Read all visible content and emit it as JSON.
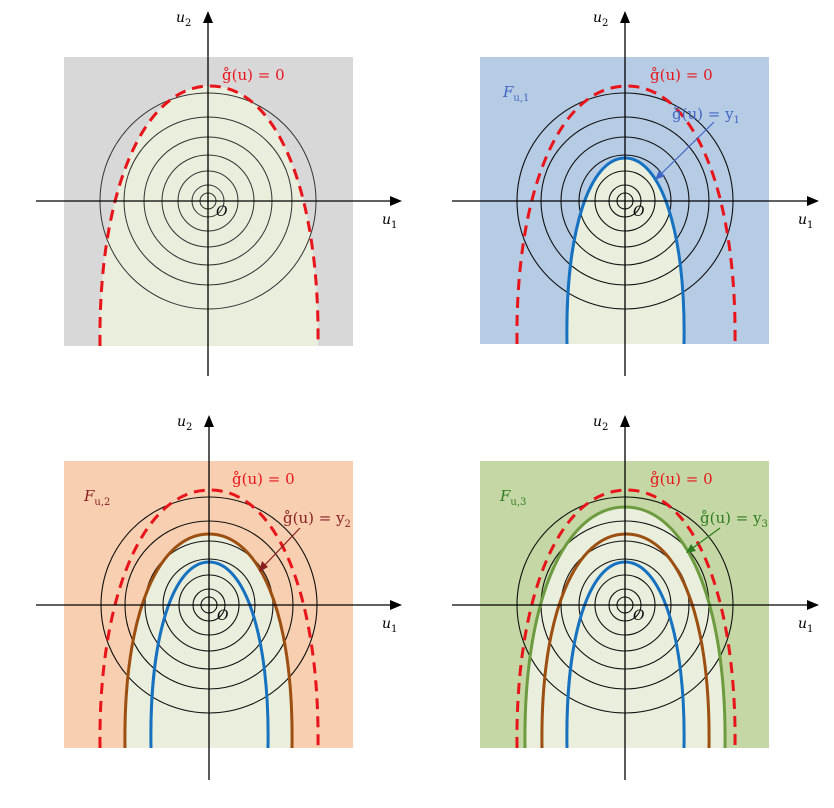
{
  "colors": {
    "boundary": "#e8141a",
    "blue": "#1672c0",
    "brown": "#9c4f10",
    "green": "#6d9b3f",
    "feasible": "#eaeedc",
    "bg_gray": "#d8d8d8",
    "bg_blue": "#b6cbe4",
    "bg_orange": "#f8cfb0",
    "bg_green": "#c4d7a4",
    "label_blue": "#3f67c6",
    "label_brown": "#8a1e1e",
    "label_green": "#2e7d1e"
  },
  "axis_labels": {
    "x": "u",
    "x_sub": "1",
    "y": "u",
    "y_sub": "2",
    "origin": "O"
  },
  "labels": {
    "boundary": "g̊(u) = 0",
    "level_1": "g̊(u) = y",
    "level_1_sub": "1",
    "level_2": "g̊(u) = y",
    "level_2_sub": "2",
    "level_3": "g̊(u) = y",
    "level_3_sub": "3",
    "family_1": "F",
    "family_1_sub": "u,1",
    "family_2": "F",
    "family_2_sub": "u,2",
    "family_3": "F",
    "family_3_sub": "u,3"
  },
  "panels": [
    {
      "id": "panel-1",
      "background": "bg_gray",
      "family_label": null,
      "level_label": null
    },
    {
      "id": "panel-2",
      "background": "bg_blue",
      "family_label": "family_1",
      "level_label": "level_1"
    },
    {
      "id": "panel-3",
      "background": "bg_orange",
      "family_label": "family_2",
      "level_label": "level_2"
    },
    {
      "id": "panel-4",
      "background": "bg_green",
      "family_label": "family_3",
      "level_label": "level_3"
    }
  ]
}
